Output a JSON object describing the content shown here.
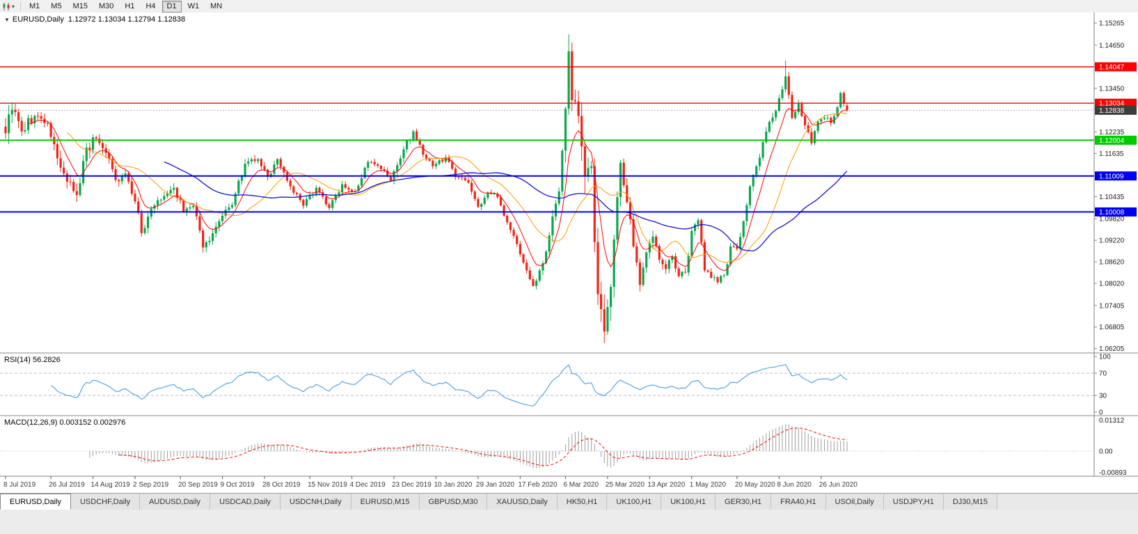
{
  "toolbar": {
    "timeframes": [
      "M1",
      "M5",
      "M15",
      "M30",
      "H1",
      "H4",
      "D1",
      "W1",
      "MN"
    ],
    "active": "D1",
    "chart_icon": "chart-type-icon"
  },
  "chart_data": {
    "type": "candlestick",
    "symbol_period": "EURUSD,Daily",
    "ohlc_label": "1.12972 1.13034 1.12794 1.12838",
    "current": {
      "open": 1.12972,
      "high": 1.13034,
      "low": 1.12794,
      "close": 1.12838
    },
    "count": 261,
    "price_axis": {
      "max": 1.1548,
      "min": 1.0618,
      "ticks": [
        "1.15265",
        "1.14650",
        "1.13450",
        "1.12235",
        "1.11635",
        "1.10435",
        "1.09820",
        "1.09220",
        "1.08620",
        "1.08020",
        "1.07405",
        "1.06805",
        "1.06205"
      ],
      "badges": [
        {
          "text": "1.14047",
          "value": 1.14047,
          "color": "#ff0000"
        },
        {
          "text": "1.13034",
          "value": 1.13034,
          "color": "#ff0000"
        },
        {
          "text": "1.12838",
          "value": 1.12838,
          "color": "#3c3c3c"
        },
        {
          "text": "1.12004",
          "value": 1.12004,
          "color": "#00ca00"
        },
        {
          "text": "1.11009",
          "value": 1.11009,
          "color": "#0000f0"
        },
        {
          "text": "1.10008",
          "value": 1.10008,
          "color": "#0000f0"
        }
      ]
    },
    "levels": [
      {
        "value": 1.14047,
        "color": "#ff0000",
        "width": 1.4
      },
      {
        "value": 1.13034,
        "color": "#ff0000",
        "width": 1.4
      },
      {
        "value": 1.12004,
        "color": "#00ca00",
        "width": 2
      },
      {
        "value": 1.11009,
        "color": "#0000f0",
        "width": 2
      },
      {
        "value": 1.10008,
        "color": "#0000f0",
        "width": 2
      }
    ],
    "moving_averages": [
      {
        "period": 8,
        "method": "ema",
        "color": "#ff0000",
        "width": 1
      },
      {
        "period": 20,
        "method": "sma",
        "color": "#ff9900",
        "width": 1
      },
      {
        "period": 50,
        "method": "sma",
        "color": "#1414c8",
        "width": 1.3
      }
    ],
    "anchors": [
      [
        0,
        1.122,
        0.0045
      ],
      [
        2,
        1.1285,
        0.0035
      ],
      [
        5,
        1.1225,
        0.003
      ],
      [
        9,
        1.1268,
        0.0022
      ],
      [
        13,
        1.1248,
        0.002
      ],
      [
        16,
        1.115,
        0.0025
      ],
      [
        19,
        1.1085,
        0.0025
      ],
      [
        22,
        1.1048,
        0.0028
      ],
      [
        25,
        1.118,
        0.003
      ],
      [
        28,
        1.1205,
        0.0022
      ],
      [
        31,
        1.1165,
        0.002
      ],
      [
        34,
        1.109,
        0.002
      ],
      [
        37,
        1.1108,
        0.0016
      ],
      [
        40,
        1.103,
        0.0018
      ],
      [
        42,
        1.0942,
        0.002
      ],
      [
        45,
        1.101,
        0.002
      ],
      [
        48,
        1.1035,
        0.0016
      ],
      [
        52,
        1.1068,
        0.0016
      ],
      [
        55,
        1.1002,
        0.0018
      ],
      [
        58,
        1.1018,
        0.0014
      ],
      [
        61,
        1.0902,
        0.0018
      ],
      [
        63,
        1.092,
        0.0016
      ],
      [
        66,
        1.0975,
        0.0016
      ],
      [
        70,
        1.102,
        0.0016
      ],
      [
        74,
        1.1135,
        0.0016
      ],
      [
        78,
        1.1148,
        0.0014
      ],
      [
        81,
        1.1098,
        0.0014
      ],
      [
        84,
        1.1148,
        0.0014
      ],
      [
        88,
        1.1072,
        0.0013
      ],
      [
        92,
        1.1018,
        0.0013
      ],
      [
        96,
        1.1068,
        0.0012
      ],
      [
        100,
        1.1012,
        0.0012
      ],
      [
        104,
        1.1078,
        0.0012
      ],
      [
        108,
        1.1058,
        0.0012
      ],
      [
        112,
        1.114,
        0.0013
      ],
      [
        116,
        1.112,
        0.0012
      ],
      [
        119,
        1.1088,
        0.0012
      ],
      [
        123,
        1.1175,
        0.0013
      ],
      [
        126,
        1.1225,
        0.0013
      ],
      [
        129,
        1.116,
        0.0012
      ],
      [
        132,
        1.1128,
        0.0012
      ],
      [
        136,
        1.1152,
        0.0011
      ],
      [
        139,
        1.1098,
        0.0011
      ],
      [
        143,
        1.1082,
        0.0011
      ],
      [
        146,
        1.1015,
        0.0012
      ],
      [
        149,
        1.1055,
        0.0012
      ],
      [
        152,
        1.1042,
        0.0011
      ],
      [
        155,
        1.0972,
        0.0011
      ],
      [
        158,
        1.0912,
        0.0011
      ],
      [
        161,
        1.0838,
        0.0011
      ],
      [
        163,
        1.0795,
        0.0012
      ],
      [
        166,
        1.0858,
        0.0016
      ],
      [
        169,
        1.0988,
        0.0022
      ],
      [
        171,
        1.1058,
        0.0028
      ],
      [
        173,
        1.1288,
        0.004
      ],
      [
        174,
        1.1448,
        0.0045
      ],
      [
        175,
        1.1312,
        0.0048
      ],
      [
        177,
        1.1268,
        0.0048
      ],
      [
        179,
        1.1102,
        0.0052
      ],
      [
        181,
        1.1128,
        0.0055
      ],
      [
        183,
        1.0772,
        0.0058
      ],
      [
        185,
        1.0668,
        0.0052
      ],
      [
        187,
        1.0792,
        0.0046
      ],
      [
        189,
        1.1042,
        0.004
      ],
      [
        190,
        1.1138,
        0.0034
      ],
      [
        192,
        1.1028,
        0.003
      ],
      [
        194,
        1.0905,
        0.0026
      ],
      [
        196,
        1.0798,
        0.0022
      ],
      [
        198,
        1.0888,
        0.0022
      ],
      [
        200,
        1.0932,
        0.002
      ],
      [
        202,
        1.0868,
        0.0018
      ],
      [
        204,
        1.0842,
        0.0018
      ],
      [
        206,
        1.0878,
        0.0016
      ],
      [
        208,
        1.0822,
        0.0016
      ],
      [
        210,
        1.0832,
        0.0015
      ],
      [
        212,
        1.0948,
        0.0018
      ],
      [
        214,
        1.0978,
        0.0016
      ],
      [
        216,
        1.0838,
        0.0016
      ],
      [
        218,
        1.0818,
        0.0014
      ],
      [
        220,
        1.0805,
        0.0014
      ],
      [
        222,
        1.0825,
        0.0014
      ],
      [
        224,
        1.0905,
        0.0016
      ],
      [
        226,
        1.0898,
        0.0014
      ],
      [
        228,
        1.0975,
        0.0015
      ],
      [
        230,
        1.1072,
        0.0016
      ],
      [
        232,
        1.1128,
        0.0016
      ],
      [
        234,
        1.1195,
        0.0016
      ],
      [
        236,
        1.1252,
        0.0016
      ],
      [
        238,
        1.1282,
        0.0015
      ],
      [
        240,
        1.1342,
        0.0016
      ],
      [
        241,
        1.1378,
        0.002
      ],
      [
        243,
        1.1262,
        0.002
      ],
      [
        245,
        1.1302,
        0.0016
      ],
      [
        247,
        1.1242,
        0.0015
      ],
      [
        249,
        1.1192,
        0.0015
      ],
      [
        251,
        1.1252,
        0.0013
      ],
      [
        253,
        1.1262,
        0.0012
      ],
      [
        255,
        1.1248,
        0.0012
      ],
      [
        257,
        1.1292,
        0.0013
      ],
      [
        258,
        1.1332,
        0.0013
      ],
      [
        259,
        1.1302,
        0.0011
      ],
      [
        260,
        1.12838,
        0.001
      ]
    ],
    "spikes": [
      {
        "i": 174,
        "high": 1.1495
      },
      {
        "i": 179,
        "low": 1.105
      },
      {
        "i": 185,
        "low": 1.0636
      },
      {
        "i": 241,
        "high": 1.1422
      }
    ],
    "date_labels": [
      {
        "i": 0,
        "t": "8 Jul 2019"
      },
      {
        "i": 14,
        "t": "26 Jul 2019"
      },
      {
        "i": 27,
        "t": "14 Aug 2019"
      },
      {
        "i": 40,
        "t": "2 Sep 2019"
      },
      {
        "i": 54,
        "t": "20 Sep 2019"
      },
      {
        "i": 67,
        "t": "9 Oct 2019"
      },
      {
        "i": 80,
        "t": "28 Oct 2019"
      },
      {
        "i": 94,
        "t": "15 Nov 2019"
      },
      {
        "i": 107,
        "t": "4 Dec 2019"
      },
      {
        "i": 120,
        "t": "23 Dec 2019"
      },
      {
        "i": 133,
        "t": "10 Jan 2020"
      },
      {
        "i": 146,
        "t": "29 Jan 2020"
      },
      {
        "i": 159,
        "t": "17 Feb 2020"
      },
      {
        "i": 173,
        "t": "6 Mar 2020"
      },
      {
        "i": 186,
        "t": "25 Mar 2020"
      },
      {
        "i": 199,
        "t": "13 Apr 2020"
      },
      {
        "i": 212,
        "t": "1 May 2020"
      },
      {
        "i": 226,
        "t": "20 May 2020"
      },
      {
        "i": 239,
        "t": "8 Jun 2020"
      },
      {
        "i": 252,
        "t": "26 Jun 2020"
      }
    ],
    "rsi": {
      "label": "RSI(14) 56.2826",
      "period": 14,
      "overbought": 70,
      "oversold": 30,
      "axis": [
        {
          "t": "100",
          "v": 100
        },
        {
          "t": "70",
          "v": 70
        },
        {
          "t": "30",
          "v": 30
        },
        {
          "t": "0",
          "v": 0
        }
      ]
    },
    "macd": {
      "label": "MACD(12,26,9) 0.003152 0.002976",
      "fast": 12,
      "slow": 26,
      "signal": 9,
      "max": 0.01312,
      "min": -0.00893,
      "axis": [
        "0.01312",
        "0.00",
        "-0.00893"
      ]
    }
  },
  "colors": {
    "candle_up": "#0aa64e",
    "candle_down": "#f02414",
    "rsi_line": "#4a9edd",
    "rsi_level": "#b9b9d6",
    "macd_hist": "#9c9c9c",
    "macd_signal": "#ff0000",
    "current_line": "#b0b0b0"
  },
  "tabs": {
    "active": 0,
    "items": [
      "EURUSD,Daily",
      "USDCHF,Daily",
      "AUDUSD,Daily",
      "USDCAD,Daily",
      "USDCNH,Daily",
      "EURUSD,M15",
      "GBPUSD,M30",
      "XAUUSD,Daily",
      "HK50,H1",
      "UK100,H1",
      "UK100,H1",
      "GER30,H1",
      "FRA40,H1",
      "USOil,Daily",
      "USDJPY,H1",
      "DJ30,M15"
    ]
  }
}
